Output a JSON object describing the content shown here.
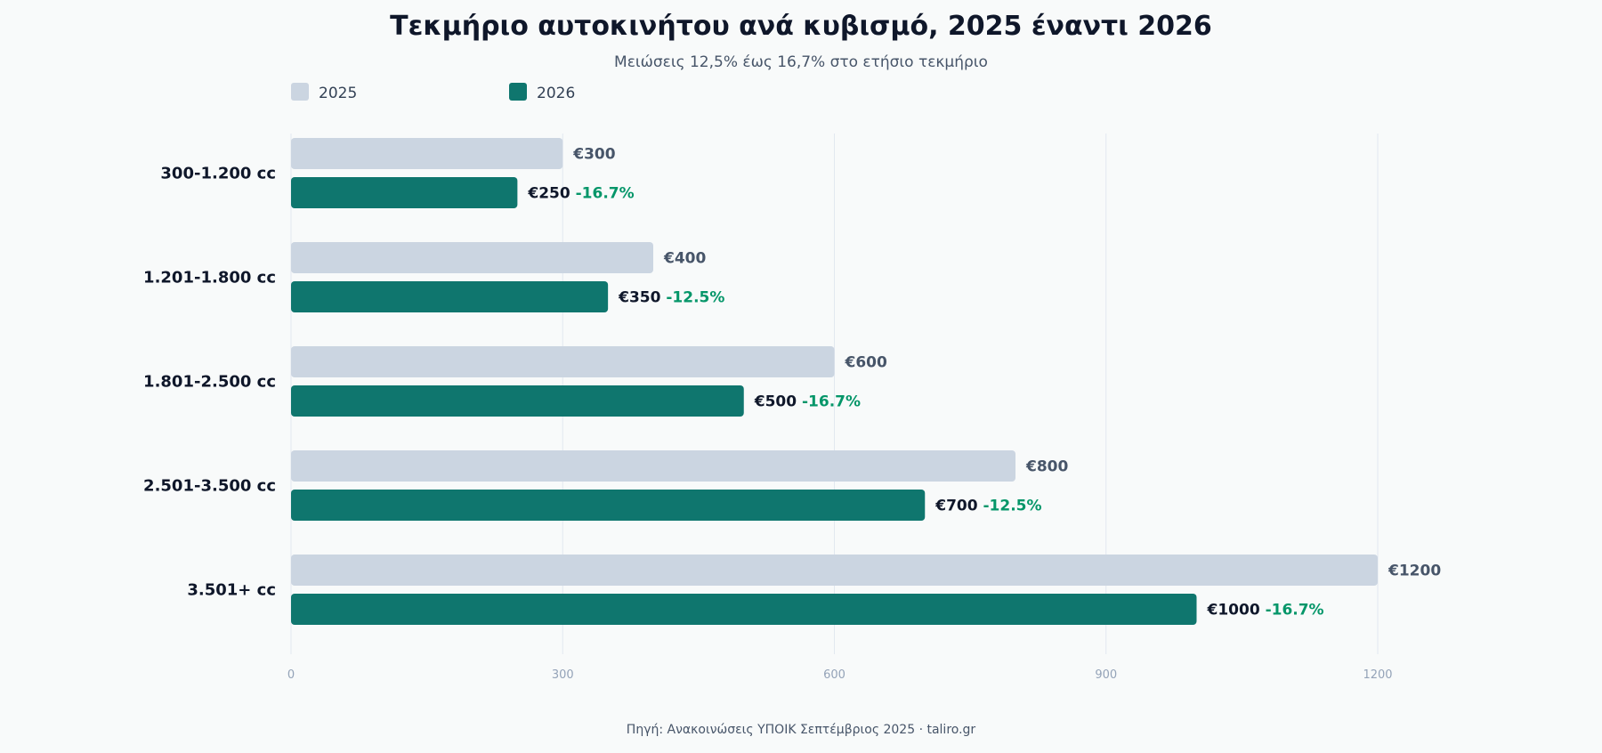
{
  "header": {
    "title": "Τεκμήριο αυτοκινήτου ανά κυβισμό, 2025 έναντι 2026",
    "subtitle": "Μειώσεις 12,5% έως 16,7% στο ετήσιο τεκμήριο"
  },
  "footer": {
    "source": "Πηγή: Ανακοινώσεις ΥΠΟΙΚ Σεπτέμβριος 2025 · taliro.gr"
  },
  "chart_data": {
    "type": "bar",
    "orientation": "horizontal",
    "title": "Τεκμήριο αυτοκινήτου ανά κυβισμό, 2025 έναντι 2026",
    "subtitle": "Μειώσεις 12,5% έως 16,7% στο ετήσιο τεκμήριο",
    "categories": [
      "300-1.200 cc",
      "1.201-1.800 cc",
      "1.801-2.500 cc",
      "2.501-3.500 cc",
      "3.501+ cc"
    ],
    "series": [
      {
        "name": "2025",
        "color": "#cbd5e1",
        "values": [
          300,
          400,
          600,
          800,
          1200
        ],
        "labels": [
          "€300",
          "€400",
          "€600",
          "€800",
          "€1200"
        ]
      },
      {
        "name": "2026",
        "color": "#0f766e",
        "values": [
          250,
          350,
          500,
          700,
          1000
        ],
        "labels": [
          "€250",
          "€350",
          "€500",
          "€700",
          "€1000"
        ],
        "change_labels": [
          "-16.7%",
          "-12.5%",
          "-16.7%",
          "-12.5%",
          "-16.7%"
        ]
      }
    ],
    "xlim": [
      0,
      1200
    ],
    "xticks": [
      0,
      300,
      600,
      900,
      1200
    ],
    "xtick_labels": [
      "0",
      "300",
      "600",
      "900",
      "1200"
    ],
    "grid": true,
    "legend_position": "top-left",
    "colors": {
      "label_2025": "#475569",
      "label_2026": "#0f172a",
      "change": "#059669",
      "grid": "#e2e8f0",
      "tick": "#94a3b8",
      "category": "#0f172a"
    }
  }
}
